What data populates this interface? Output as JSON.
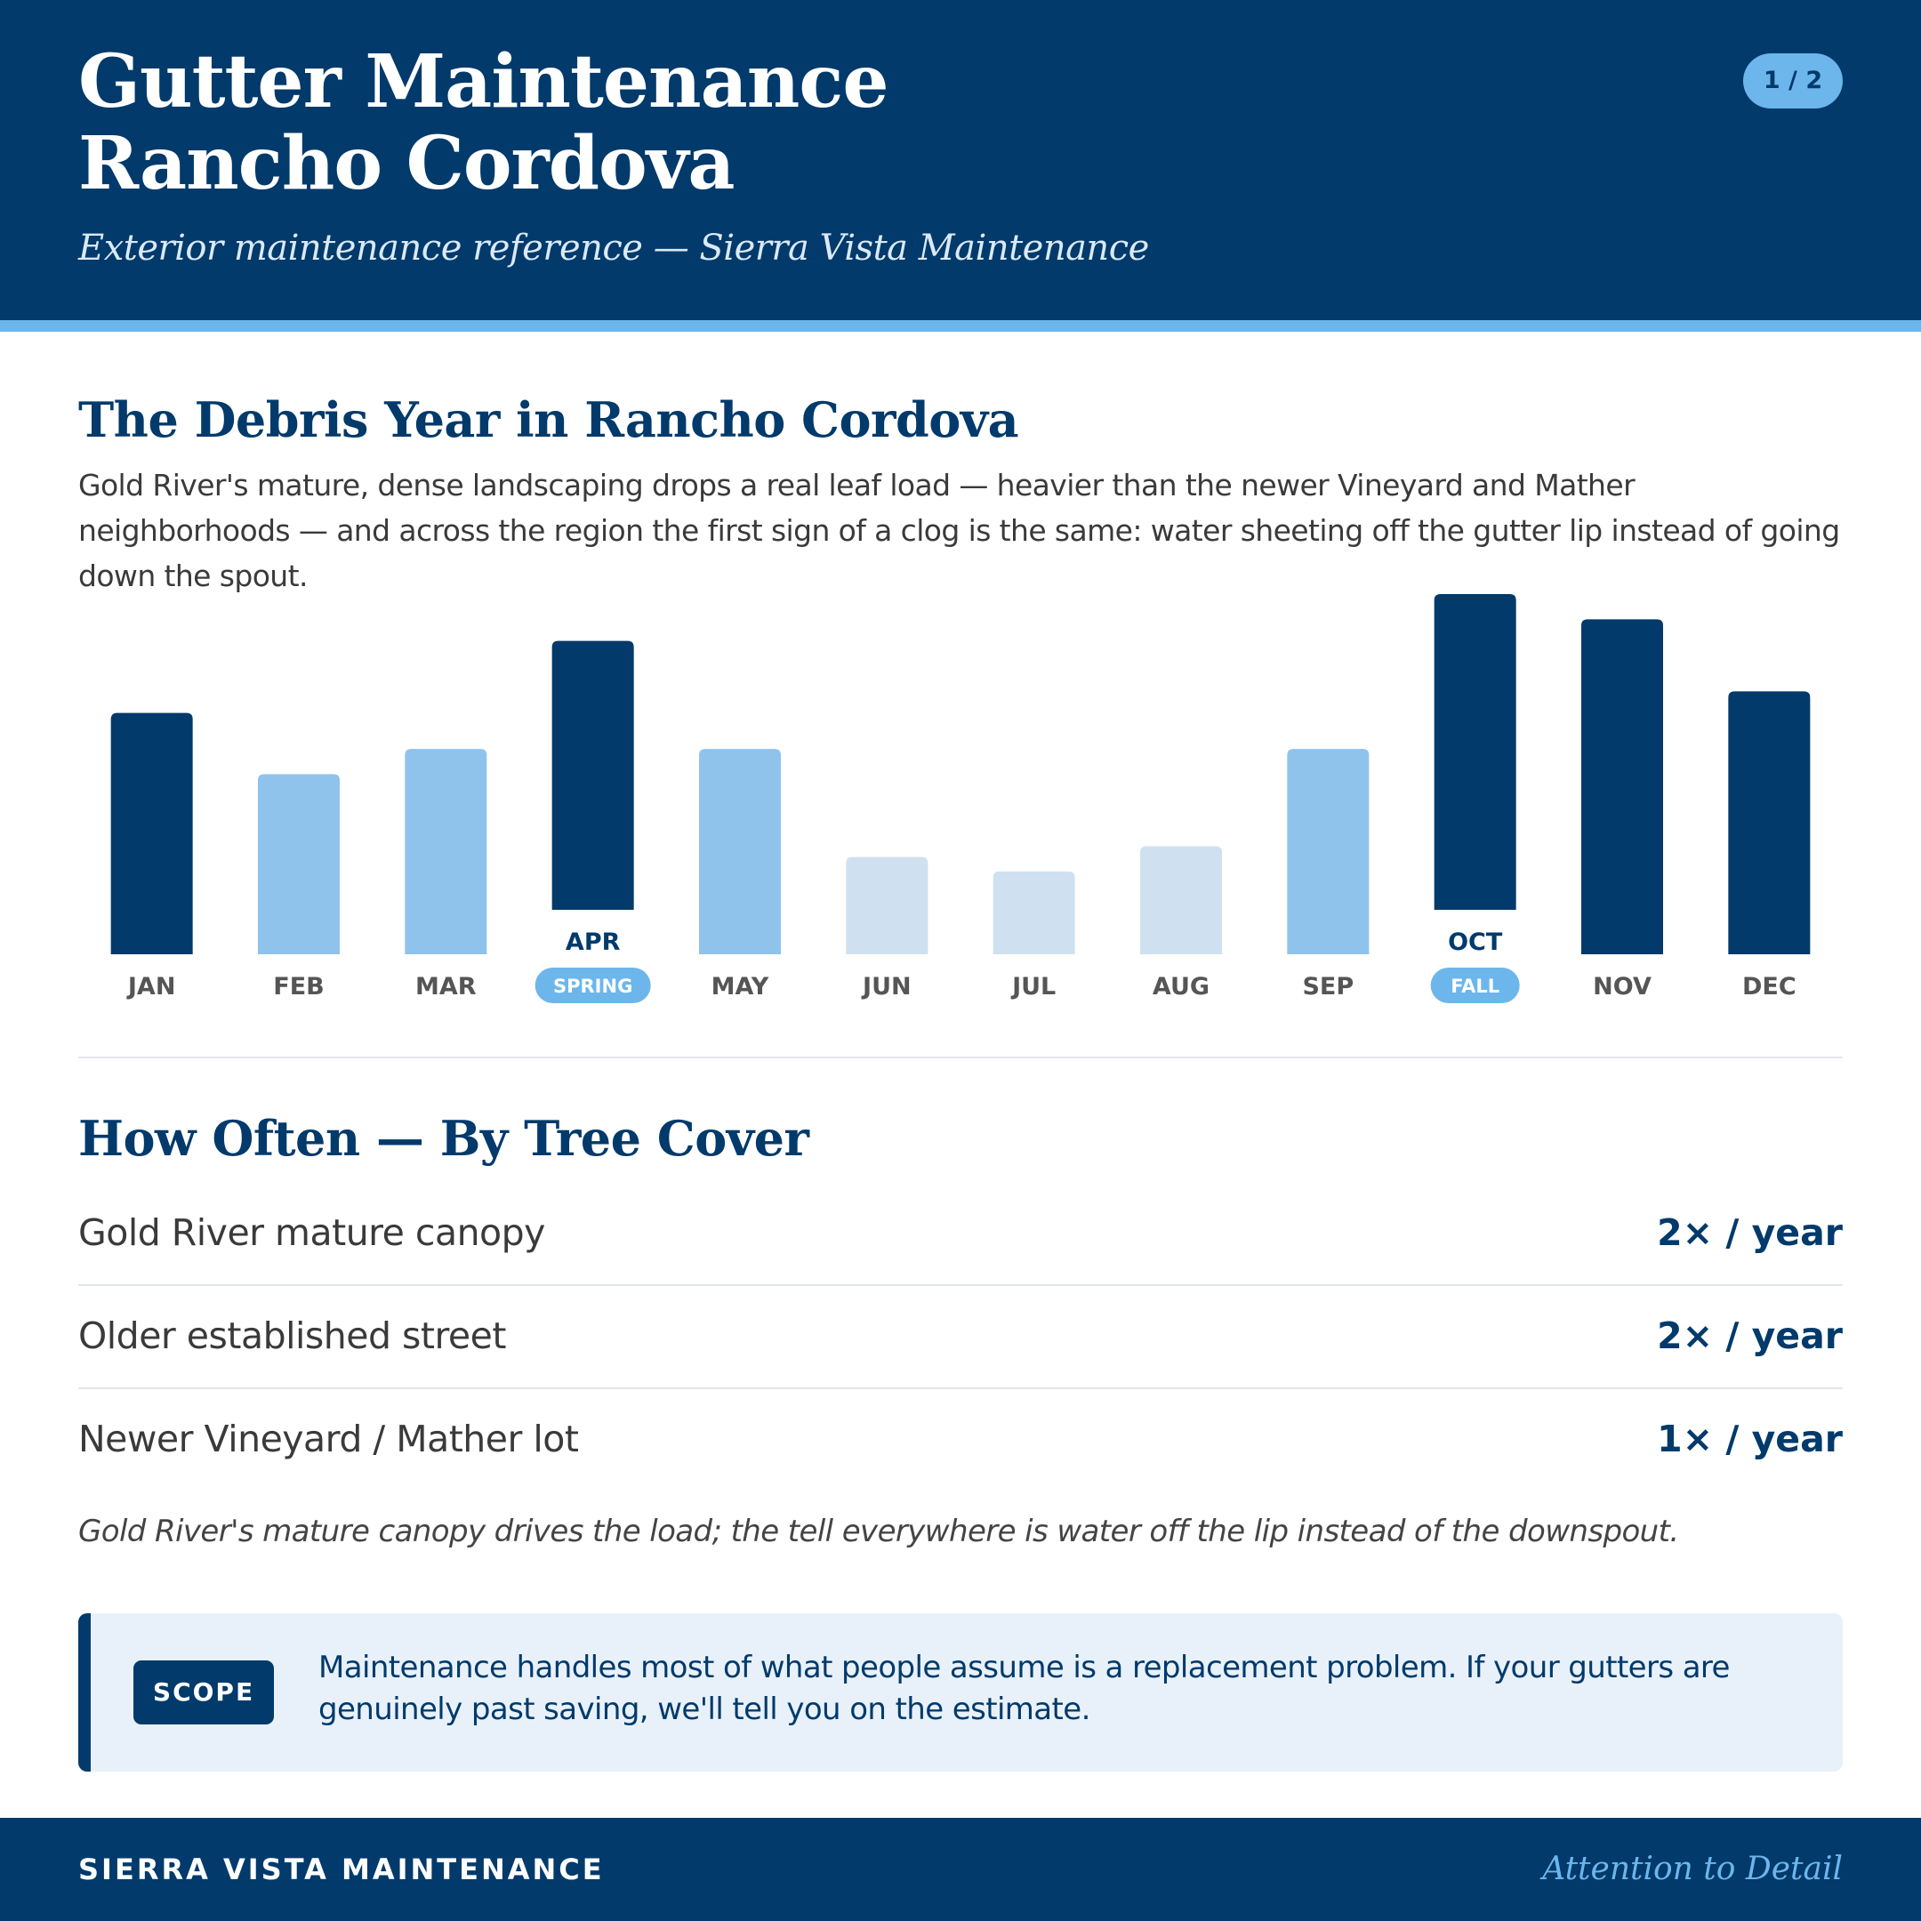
{
  "header": {
    "title_line1": "Gutter Maintenance",
    "title_line2": "Rancho Cordova",
    "subtitle": "Exterior maintenance reference — Sierra Vista Maintenance",
    "page_indicator": "1 / 2"
  },
  "debris": {
    "heading": "The Debris Year in Rancho Cordova",
    "intro": "Gold River's mature, dense landscaping drops a real leaf load — heavier than the newer Vineyard and Mather neighborhoods — and across the region the first sign of a clog is the same: water sheeting off the gutter lip instead of going down the spout."
  },
  "chart_data": {
    "type": "bar",
    "title": "",
    "xlabel": "",
    "ylabel": "",
    "categories": [
      "JAN",
      "FEB",
      "MAR",
      "APR",
      "MAY",
      "JUN",
      "JUL",
      "AUG",
      "SEP",
      "OCT",
      "NOV",
      "DEC"
    ],
    "values": [
      67,
      50,
      57,
      87,
      57,
      27,
      23,
      30,
      57,
      100,
      93,
      73
    ],
    "levels": [
      "high",
      "medium",
      "medium",
      "high",
      "medium",
      "low",
      "low",
      "low",
      "medium",
      "high",
      "high",
      "high"
    ],
    "badges": {
      "APR": "SPRING",
      "OCT": "FALL"
    },
    "ylim": [
      0,
      100
    ],
    "grid": false,
    "legend": "none",
    "colors": {
      "high": "#013a6b",
      "medium": "#8fc3ec",
      "low": "#cfe1f0",
      "badge": "#6cb6ec"
    }
  },
  "frequency": {
    "heading": "How Often — By Tree Cover",
    "rows": [
      {
        "label": "Gold River mature canopy",
        "value": "2× / year"
      },
      {
        "label": "Older established street",
        "value": "2× / year"
      },
      {
        "label": "Newer Vineyard / Mather lot",
        "value": "1× / year"
      }
    ],
    "note": "Gold River's mature canopy drives the load; the tell everywhere is water off the lip instead of the downspout."
  },
  "scope": {
    "tag": "SCOPE",
    "text": "Maintenance handles most of what people assume is a replacement problem. If your gutters are genuinely past saving, we'll tell you on the estimate."
  },
  "footer": {
    "brand": "SIERRA VISTA MAINTENANCE",
    "tagline": "Attention to Detail"
  }
}
